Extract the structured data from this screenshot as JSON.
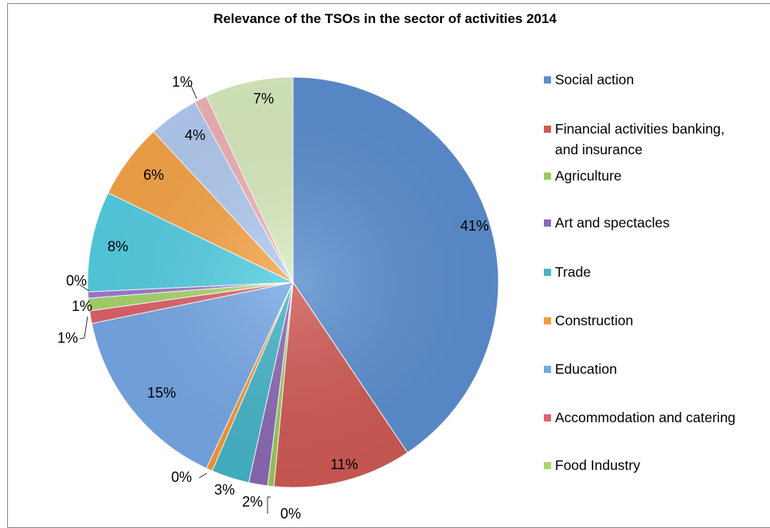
{
  "chart_data": {
    "type": "pie",
    "title": "Relevance of the TSOs in the sector of activities 2014",
    "legend_position": "right",
    "slices": [
      {
        "label": "Social action",
        "value": 41,
        "display": "41%",
        "color": "#5b8fd0"
      },
      {
        "label": "Financial activities banking, and insurance",
        "value": 11,
        "display": "11%",
        "color": "#d05a55"
      },
      {
        "label": "Agriculture",
        "value": 0.5,
        "display": "0%",
        "color": "#9bc95b"
      },
      {
        "label": "Art and spectacles",
        "value": 1.5,
        "display": "2%",
        "color": "#8c6ab3"
      },
      {
        "label": "Trade",
        "value": 3,
        "display": "3%",
        "color": "#45b5c9"
      },
      {
        "label": "Construction",
        "value": 0.5,
        "display": "0%",
        "color": "#f59a3a"
      },
      {
        "label": "Education",
        "value": 15,
        "display": "15%",
        "color": "#77a8e6"
      },
      {
        "label": "Accommodation and catering",
        "value": 1,
        "display": "1%",
        "color": "#e0626a"
      },
      {
        "label": "Food Industry",
        "value": 1,
        "display": "1%",
        "color": "#a9d66d"
      },
      {
        "label": "",
        "value": 0.5,
        "display": "0%",
        "color": "#9f7ad0"
      },
      {
        "label": "",
        "value": 8,
        "display": "8%",
        "color": "#55cfe3"
      },
      {
        "label": "",
        "value": 6,
        "display": "6%",
        "color": "#f7a548"
      },
      {
        "label": "",
        "value": 4,
        "display": "4%",
        "color": "#b3ccf2"
      },
      {
        "label": "",
        "value": 1,
        "display": "1%",
        "color": "#f2b3b8"
      },
      {
        "label": "",
        "value": 7,
        "display": "7%",
        "color": "#d9ecbf"
      }
    ]
  },
  "legend": [
    {
      "text": "Social action",
      "text2": "",
      "color": "#5b8fd0"
    },
    {
      "text": "Financial activities banking,",
      "text2": "and insurance",
      "color": "#d05a55"
    },
    {
      "text": "Agriculture",
      "text2": "",
      "color": "#9bc95b"
    },
    {
      "text": "Art and spectacles",
      "text2": "",
      "color": "#8c6ab3"
    },
    {
      "text": "Trade",
      "text2": "",
      "color": "#45b5c9"
    },
    {
      "text": "Construction",
      "text2": "",
      "color": "#f59a3a"
    },
    {
      "text": "Education",
      "text2": "",
      "color": "#77a8e6"
    },
    {
      "text": "Accommodation and catering",
      "text2": "",
      "color": "#e0626a"
    },
    {
      "text": "Food Industry",
      "text2": "",
      "color": "#a9d66d"
    }
  ]
}
